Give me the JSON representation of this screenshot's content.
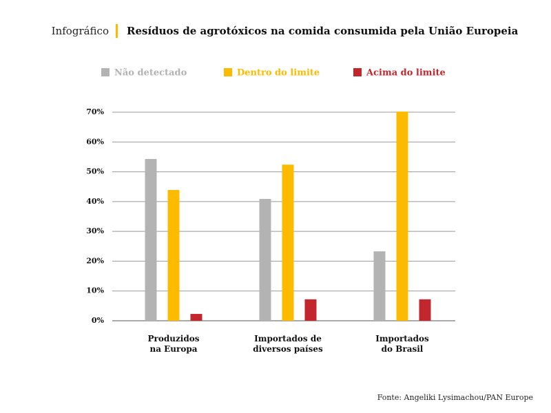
{
  "chart_data": {
    "type": "bar",
    "kicker": "Infográfico",
    "title": "Resíduos de agrotóxicos na comida consumida pela União Europeia",
    "categories": [
      "Produzidos\nna Europa",
      "Importados de\ndiversos países",
      "Importados\ndo Brasil"
    ],
    "series": [
      {
        "name": "Não detectado",
        "color": "#b3b3b3",
        "values": [
          54.3,
          40.9,
          23.3
        ]
      },
      {
        "name": "Dentro do limite",
        "color": "#fdbb00",
        "values": [
          43.9,
          52.4,
          70.2
        ]
      },
      {
        "name": "Acima do limite",
        "color": "#c1272d",
        "values": [
          2.3,
          7.2,
          7.2
        ]
      }
    ],
    "ylim": [
      0,
      70
    ],
    "yticks": [
      {
        "value": 0,
        "label": "0%"
      },
      {
        "value": 10,
        "label": "10%"
      },
      {
        "value": 20,
        "label": "20%"
      },
      {
        "value": 30,
        "label": "30%"
      },
      {
        "value": 40,
        "label": "40%"
      },
      {
        "value": 50,
        "label": "50%"
      },
      {
        "value": 60,
        "label": "60%"
      },
      {
        "value": 70,
        "label": "70%"
      }
    ],
    "grid": true,
    "source": "Fonte: Angeliki Lysimachou/PAN Europe"
  }
}
